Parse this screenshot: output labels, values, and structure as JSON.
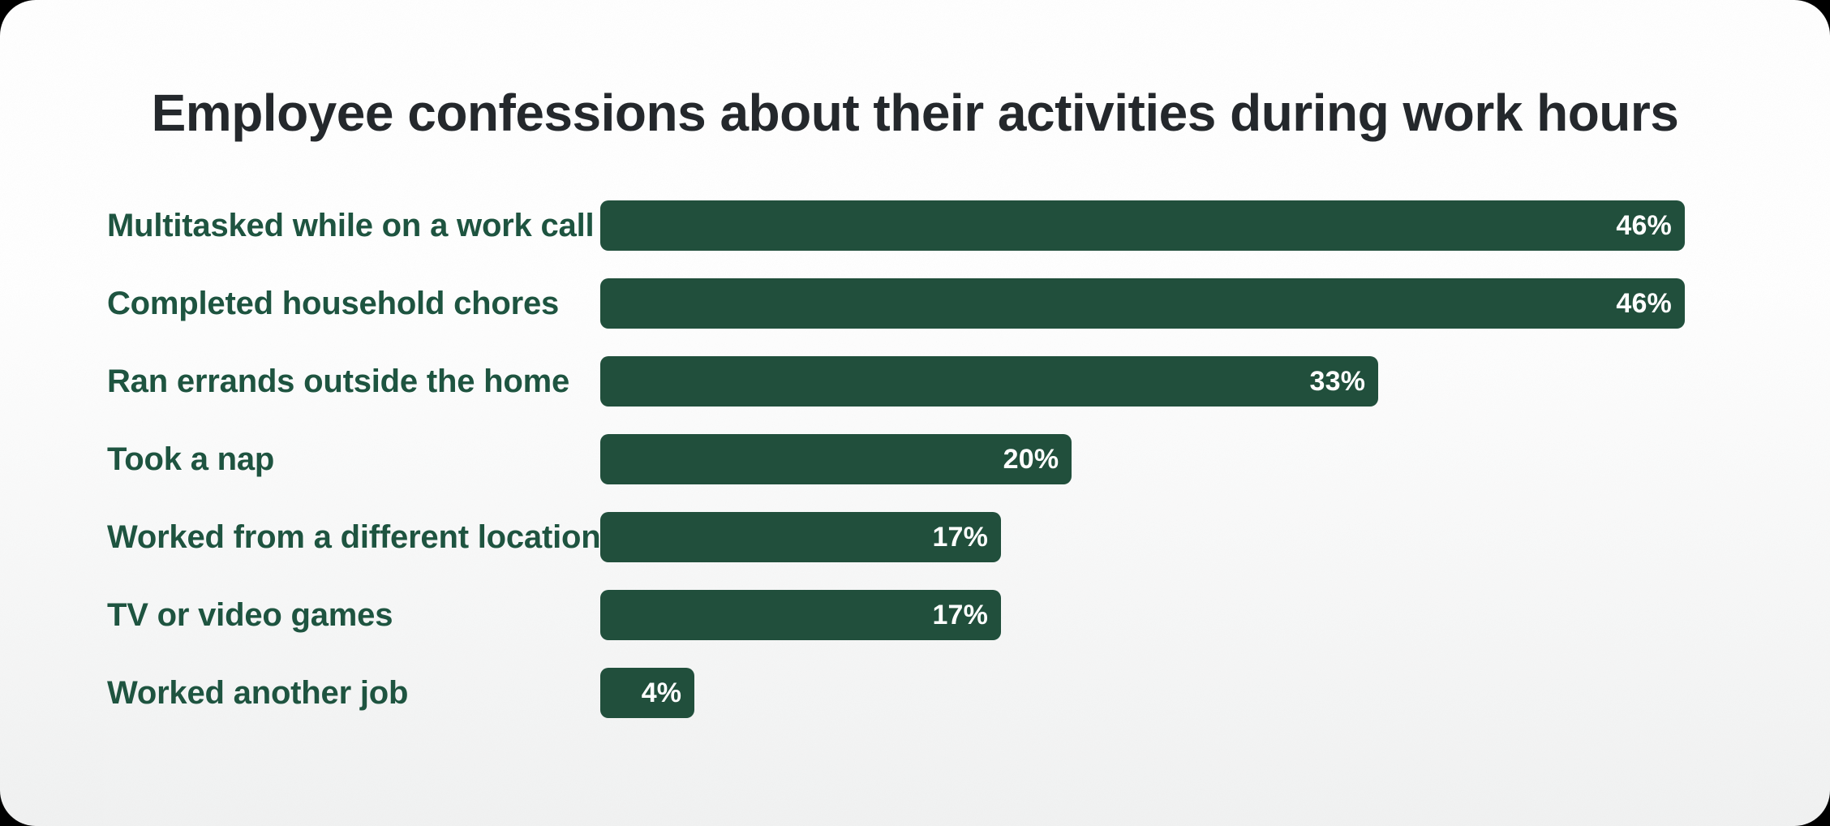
{
  "header": {
    "title": "Employee confessions about their activities during work hours"
  },
  "chart_data": {
    "type": "bar",
    "orientation": "horizontal",
    "title": "Employee confessions about their activities during work hours",
    "categories": [
      "Multitasked while on a work call",
      "Completed household chores",
      "Ran errands outside the home",
      "Took a nap",
      "Worked from a different location",
      "TV or video games",
      "Worked another job"
    ],
    "values": [
      46,
      46,
      33,
      20,
      17,
      17,
      4
    ],
    "value_labels": [
      "46%",
      "46%",
      "33%",
      "20%",
      "17%",
      "17%",
      "4%"
    ],
    "unit": "%",
    "xlabel": "",
    "ylabel": "",
    "xlim": [
      0,
      46
    ],
    "grid": false,
    "legend": false,
    "value_label_position": "inside-end",
    "colors": {
      "bar": "#214F3C",
      "category_label": "#1E5440",
      "value_label": "#FFFFFF",
      "title": "#24282C",
      "card_top": "#FFFFFF",
      "card_bottom": "#F1F2F2",
      "page_background": "#000000"
    }
  }
}
